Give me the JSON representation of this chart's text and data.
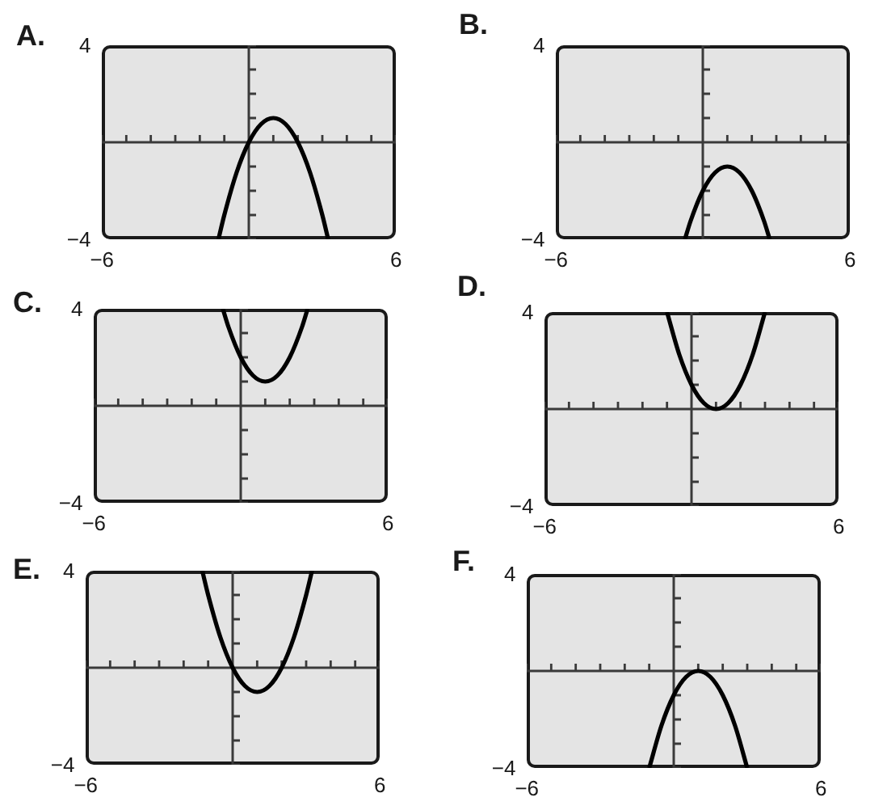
{
  "chart_data": [
    {
      "type": "line",
      "title": "A.",
      "x": [
        -1.24,
        -1,
        -0.5,
        0,
        0.5,
        1,
        1.5,
        2,
        2.5,
        3,
        3.24
      ],
      "values": [
        -4,
        -3,
        -1.25,
        0,
        0.75,
        1,
        0.75,
        0,
        -1.25,
        -3,
        -4
      ],
      "color": "#000000",
      "xlim": [
        -6,
        6
      ],
      "ylim": [
        -4,
        4
      ],
      "xticks": [
        {
          "value": -6,
          "label": "−6"
        },
        {
          "value": -5,
          "label": null
        },
        {
          "value": -4,
          "label": null
        },
        {
          "value": -3,
          "label": null
        },
        {
          "value": -2,
          "label": null
        },
        {
          "value": -1,
          "label": null
        },
        {
          "value": 1,
          "label": null
        },
        {
          "value": 2,
          "label": null
        },
        {
          "value": 3,
          "label": null
        },
        {
          "value": 4,
          "label": null
        },
        {
          "value": 5,
          "label": null
        },
        {
          "value": 6,
          "label": "6"
        }
      ],
      "yticks": [
        {
          "value": -4,
          "label": "−4"
        },
        {
          "value": -3,
          "label": null
        },
        {
          "value": -2,
          "label": null
        },
        {
          "value": -1,
          "label": null
        },
        {
          "value": 1,
          "label": null
        },
        {
          "value": 2,
          "label": null
        },
        {
          "value": 3,
          "label": null
        },
        {
          "value": 4,
          "label": "4"
        }
      ]
    },
    {
      "type": "line",
      "title": "B.",
      "x": [
        -0.73,
        -0.5,
        0,
        0.5,
        1,
        1.5,
        2,
        2.5,
        2.73
      ],
      "values": [
        -4,
        -3.25,
        -2,
        -1.25,
        -1,
        -1.25,
        -2,
        -3.25,
        -4
      ],
      "color": "#000000",
      "xlim": [
        -6,
        6
      ],
      "ylim": [
        -4,
        4
      ],
      "xticks": [
        {
          "value": -6,
          "label": "−6"
        },
        {
          "value": -5,
          "label": null
        },
        {
          "value": -4,
          "label": null
        },
        {
          "value": -3,
          "label": null
        },
        {
          "value": -2,
          "label": null
        },
        {
          "value": -1,
          "label": null
        },
        {
          "value": 1,
          "label": null
        },
        {
          "value": 2,
          "label": null
        },
        {
          "value": 3,
          "label": null
        },
        {
          "value": 4,
          "label": null
        },
        {
          "value": 5,
          "label": null
        },
        {
          "value": 6,
          "label": "6"
        }
      ],
      "yticks": [
        {
          "value": -4,
          "label": "−4"
        },
        {
          "value": -3,
          "label": null
        },
        {
          "value": -2,
          "label": null
        },
        {
          "value": -1,
          "label": null
        },
        {
          "value": 1,
          "label": null
        },
        {
          "value": 2,
          "label": null
        },
        {
          "value": 3,
          "label": null
        },
        {
          "value": 4,
          "label": "4"
        }
      ]
    },
    {
      "type": "line",
      "title": "C.",
      "x": [
        -0.73,
        -0.5,
        0,
        0.5,
        1,
        1.5,
        2,
        2.5,
        2.73
      ],
      "values": [
        4,
        3.25,
        2,
        1.25,
        1,
        1.25,
        2,
        3.25,
        4
      ],
      "color": "#000000",
      "xlim": [
        -6,
        6
      ],
      "ylim": [
        -4,
        4
      ],
      "xticks": [
        {
          "value": -6,
          "label": "−6"
        },
        {
          "value": -5,
          "label": null
        },
        {
          "value": -4,
          "label": null
        },
        {
          "value": -3,
          "label": null
        },
        {
          "value": -2,
          "label": null
        },
        {
          "value": -1,
          "label": null
        },
        {
          "value": 1,
          "label": null
        },
        {
          "value": 2,
          "label": null
        },
        {
          "value": 3,
          "label": null
        },
        {
          "value": 4,
          "label": null
        },
        {
          "value": 5,
          "label": null
        },
        {
          "value": 6,
          "label": "6"
        }
      ],
      "yticks": [
        {
          "value": -4,
          "label": "−4"
        },
        {
          "value": -3,
          "label": null
        },
        {
          "value": -2,
          "label": null
        },
        {
          "value": -1,
          "label": null
        },
        {
          "value": 1,
          "label": null
        },
        {
          "value": 2,
          "label": null
        },
        {
          "value": 3,
          "label": null
        },
        {
          "value": 4,
          "label": "4"
        }
      ]
    },
    {
      "type": "line",
      "title": "D.",
      "x": [
        -1,
        -0.5,
        0,
        0.5,
        1,
        1.5,
        2,
        2.5,
        3
      ],
      "values": [
        4,
        2.25,
        1,
        0.25,
        0,
        0.25,
        1,
        2.25,
        4
      ],
      "color": "#000000",
      "xlim": [
        -6,
        6
      ],
      "ylim": [
        -4,
        4
      ],
      "xticks": [
        {
          "value": -6,
          "label": "−6"
        },
        {
          "value": -5,
          "label": null
        },
        {
          "value": -4,
          "label": null
        },
        {
          "value": -3,
          "label": null
        },
        {
          "value": -2,
          "label": null
        },
        {
          "value": -1,
          "label": null
        },
        {
          "value": 1,
          "label": null
        },
        {
          "value": 2,
          "label": null
        },
        {
          "value": 3,
          "label": null
        },
        {
          "value": 4,
          "label": null
        },
        {
          "value": 5,
          "label": null
        },
        {
          "value": 6,
          "label": "6"
        }
      ],
      "yticks": [
        {
          "value": -4,
          "label": "−4"
        },
        {
          "value": -3,
          "label": null
        },
        {
          "value": -2,
          "label": null
        },
        {
          "value": -1,
          "label": null
        },
        {
          "value": 1,
          "label": null
        },
        {
          "value": 2,
          "label": null
        },
        {
          "value": 3,
          "label": null
        },
        {
          "value": 4,
          "label": "4"
        }
      ]
    },
    {
      "type": "line",
      "title": "E.",
      "x": [
        -1.24,
        -1,
        -0.5,
        0,
        0.5,
        1,
        1.5,
        2,
        2.5,
        3,
        3.24
      ],
      "values": [
        4,
        3,
        1.25,
        0,
        -0.75,
        -1,
        -0.75,
        0,
        1.25,
        3,
        4
      ],
      "color": "#000000",
      "xlim": [
        -6,
        6
      ],
      "ylim": [
        -4,
        4
      ],
      "xticks": [
        {
          "value": -6,
          "label": "−6"
        },
        {
          "value": -5,
          "label": null
        },
        {
          "value": -4,
          "label": null
        },
        {
          "value": -3,
          "label": null
        },
        {
          "value": -2,
          "label": null
        },
        {
          "value": -1,
          "label": null
        },
        {
          "value": 1,
          "label": null
        },
        {
          "value": 2,
          "label": null
        },
        {
          "value": 3,
          "label": null
        },
        {
          "value": 4,
          "label": null
        },
        {
          "value": 5,
          "label": null
        },
        {
          "value": 6,
          "label": "6"
        }
      ],
      "yticks": [
        {
          "value": -4,
          "label": "−4"
        },
        {
          "value": -3,
          "label": null
        },
        {
          "value": -2,
          "label": null
        },
        {
          "value": -1,
          "label": null
        },
        {
          "value": 1,
          "label": null
        },
        {
          "value": 2,
          "label": null
        },
        {
          "value": 3,
          "label": null
        },
        {
          "value": 4,
          "label": "4"
        }
      ]
    },
    {
      "type": "line",
      "title": "F.",
      "x": [
        -1,
        -0.5,
        0,
        0.5,
        1,
        1.5,
        2,
        2.5,
        3
      ],
      "values": [
        -4,
        -2.25,
        -1,
        -0.25,
        0,
        -0.25,
        -1,
        -2.25,
        -4
      ],
      "color": "#000000",
      "xlim": [
        -6,
        6
      ],
      "ylim": [
        -4,
        4
      ],
      "xticks": [
        {
          "value": -6,
          "label": "−6"
        },
        {
          "value": -5,
          "label": null
        },
        {
          "value": -4,
          "label": null
        },
        {
          "value": -3,
          "label": null
        },
        {
          "value": -2,
          "label": null
        },
        {
          "value": -1,
          "label": null
        },
        {
          "value": 1,
          "label": null
        },
        {
          "value": 2,
          "label": null
        },
        {
          "value": 3,
          "label": null
        },
        {
          "value": 4,
          "label": null
        },
        {
          "value": 5,
          "label": null
        },
        {
          "value": 6,
          "label": "6"
        }
      ],
      "yticks": [
        {
          "value": -4,
          "label": "−4"
        },
        {
          "value": -3,
          "label": null
        },
        {
          "value": -2,
          "label": null
        },
        {
          "value": -1,
          "label": null
        },
        {
          "value": 1,
          "label": null
        },
        {
          "value": 2,
          "label": null
        },
        {
          "value": 3,
          "label": null
        },
        {
          "value": 4,
          "label": "4"
        }
      ]
    }
  ]
}
